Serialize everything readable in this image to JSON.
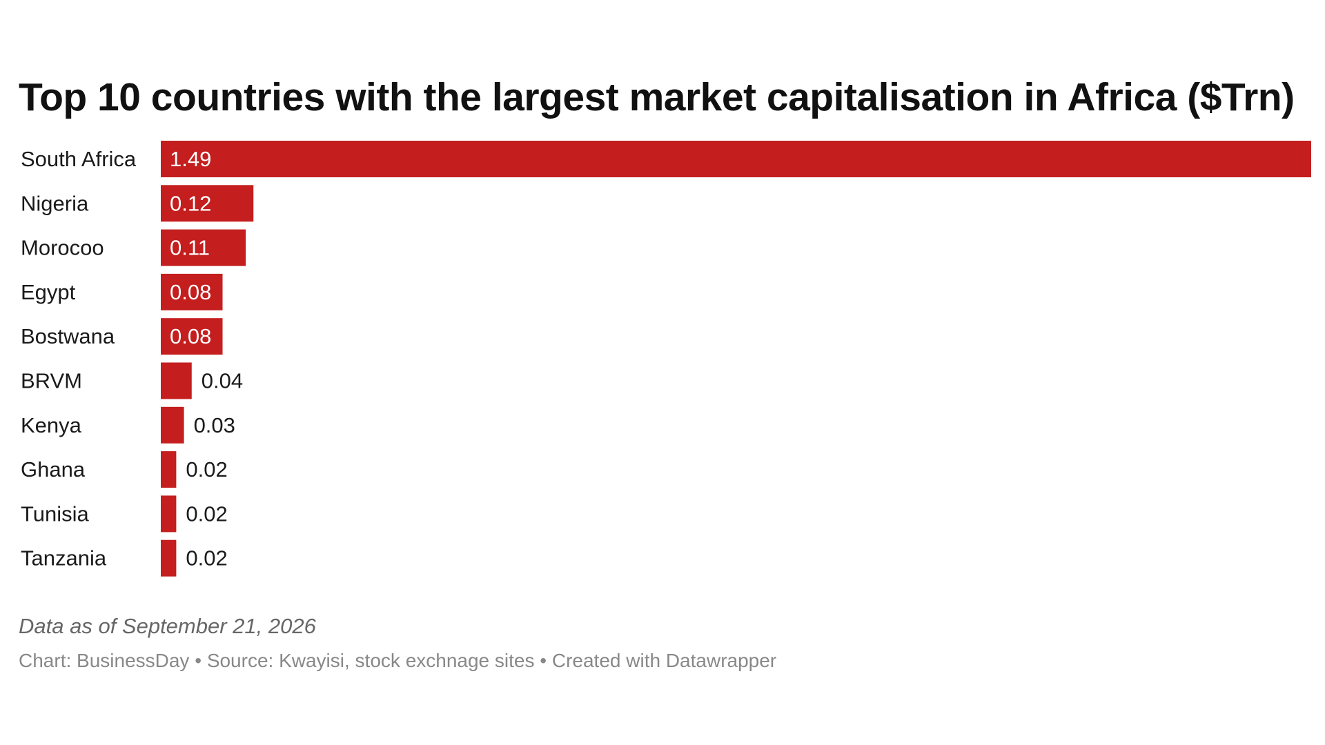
{
  "chart_data": {
    "type": "bar",
    "orientation": "horizontal",
    "title": "Top 10 countries with the largest market capitalisation in Africa ($Trn)",
    "categories": [
      "South Africa",
      "Nigeria",
      "Morocoo",
      "Egypt",
      "Bostwana",
      "BRVM",
      "Kenya",
      "Ghana",
      "Tunisia",
      "Tanzania"
    ],
    "values": [
      1.49,
      0.12,
      0.11,
      0.08,
      0.08,
      0.04,
      0.03,
      0.02,
      0.02,
      0.02
    ],
    "value_labels": [
      "1.49",
      "0.12",
      "0.11",
      "0.08",
      "0.08",
      "0.04",
      "0.03",
      "0.02",
      "0.02",
      "0.02"
    ],
    "xlim": [
      0,
      1.49
    ],
    "grid": false,
    "legend": "none",
    "bar_color": "#c41e1e"
  },
  "notes": {
    "data_as_of": "Data as of September 21, 2026",
    "footer_chart": "Chart: BusinessDay",
    "footer_source": "Source: Kwayisi, stock exchnage sites",
    "footer_created": "Created with Datawrapper",
    "separator": "•"
  }
}
